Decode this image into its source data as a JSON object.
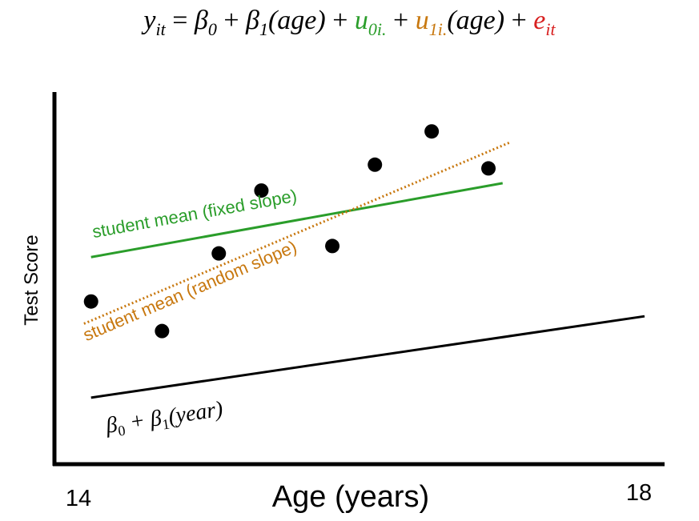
{
  "equation": {
    "y": "y",
    "y_sub": "it",
    "eq": "=",
    "b0": "β",
    "b0_sub": "0",
    "plus1": "+",
    "b1": "β",
    "b1_sub": "1",
    "age1": "(age)",
    "plus2": "+",
    "u0": "u",
    "u0_sub": "0i.",
    "plus3": "+",
    "u1": "u",
    "u1_sub": "1i.",
    "age2": "(age)",
    "plus4": "+",
    "e": "e",
    "e_sub": "it",
    "colors": {
      "u0": "#2a9d2a",
      "u1": "#c8780f",
      "e": "#d82020"
    }
  },
  "chart_data": {
    "type": "scatter",
    "xlabel": "Age (years)",
    "ylabel": "Test Score",
    "x_tick_labels": [
      "14",
      "18"
    ],
    "xlim": [
      14,
      18
    ],
    "ylim": [
      0,
      100
    ],
    "points": [
      {
        "x": 14.1,
        "y": 44
      },
      {
        "x": 14.6,
        "y": 36
      },
      {
        "x": 15.0,
        "y": 57
      },
      {
        "x": 15.3,
        "y": 74
      },
      {
        "x": 15.8,
        "y": 59
      },
      {
        "x": 16.1,
        "y": 81
      },
      {
        "x": 16.5,
        "y": 90
      },
      {
        "x": 16.9,
        "y": 80
      }
    ],
    "lines": [
      {
        "label": "student mean (fixed slope)",
        "color": "#2a9d2a",
        "style": "solid",
        "x": [
          14.1,
          17.0
        ],
        "y": [
          56,
          76
        ]
      },
      {
        "label": "student mean (random slope)",
        "color": "#c8780f",
        "style": "dotted",
        "x": [
          14.05,
          17.05
        ],
        "y": [
          38,
          87
        ]
      },
      {
        "label": "β0 + β1(year)",
        "label_parts": {
          "b0": "β",
          "b0_sub": "0",
          "plus": "+",
          "b1": "β",
          "b1_sub": "1",
          "paren": "(year)"
        },
        "color": "#000000",
        "style": "solid",
        "x": [
          14.1,
          18.0
        ],
        "y": [
          18,
          40
        ]
      }
    ]
  }
}
